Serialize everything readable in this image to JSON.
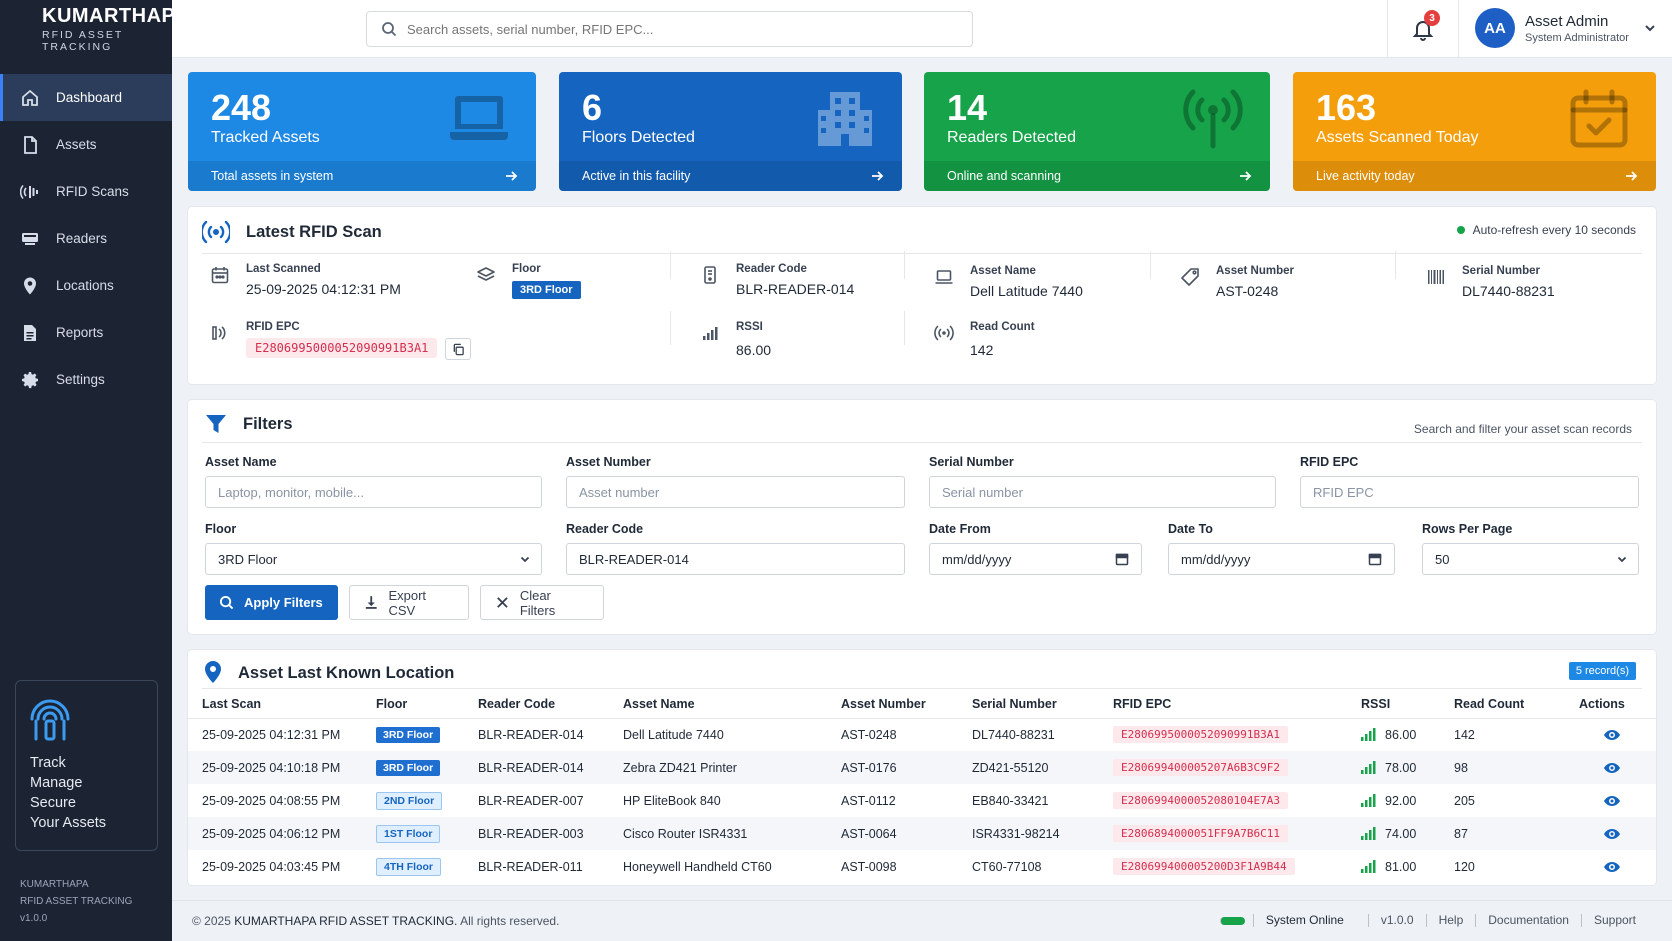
{
  "brand": {
    "name": "KUMARTHAPA",
    "subtitle": "RFID ASSET TRACKING"
  },
  "sidebar": {
    "items": [
      {
        "label": "Dashboard",
        "icon": "home-icon",
        "active": true
      },
      {
        "label": "Assets",
        "icon": "file-icon"
      },
      {
        "label": "RFID Scans",
        "icon": "rfid-scan-icon"
      },
      {
        "label": "Readers",
        "icon": "reader-icon"
      },
      {
        "label": "Locations",
        "icon": "location-pin-icon"
      },
      {
        "label": "Reports",
        "icon": "report-icon"
      },
      {
        "label": "Settings",
        "icon": "gear-icon"
      }
    ],
    "promo": {
      "lines": [
        "Track",
        "Manage",
        "Secure",
        "Your Assets"
      ]
    },
    "footer": {
      "name": "KUMARTHAPA",
      "subtitle": "RFID ASSET TRACKING",
      "version": "v1.0.0"
    }
  },
  "topbar": {
    "search_placeholder": "Search assets, serial number, RFID EPC...",
    "notifications": "3",
    "user": {
      "initials": "AA",
      "name": "Asset Admin",
      "role": "System Administrator"
    }
  },
  "stats": [
    {
      "value": "248",
      "label": "Tracked Assets",
      "footer": "Total assets in system",
      "color": "#1e88e5",
      "icon": "laptop-icon"
    },
    {
      "value": "6",
      "label": "Floors Detected",
      "footer": "Active in this facility",
      "color": "#1565c0",
      "icon": "building-icon"
    },
    {
      "value": "14",
      "label": "Readers Detected",
      "footer": "Online and scanning",
      "color": "#16a34a",
      "icon": "antenna-icon"
    },
    {
      "value": "163",
      "label": "Assets Scanned Today",
      "footer": "Live activity today",
      "color": "#f59e0b",
      "icon": "calendar-check-icon"
    }
  ],
  "latest_scan": {
    "title": "Latest RFID Scan",
    "auto_refresh": "Auto-refresh every 10 seconds",
    "last_scanned": {
      "label": "Last Scanned",
      "value": "25-09-2025 04:12:31 PM"
    },
    "floor": {
      "label": "Floor",
      "value": "3RD Floor"
    },
    "reader_code": {
      "label": "Reader Code",
      "value": "BLR-READER-014"
    },
    "asset_name": {
      "label": "Asset Name",
      "value": "Dell Latitude 7440"
    },
    "asset_number": {
      "label": "Asset Number",
      "value": "AST-0248"
    },
    "serial_number": {
      "label": "Serial Number",
      "value": "DL7440-88231"
    },
    "rfid_epc": {
      "label": "RFID EPC",
      "value": "E2806995000052090991B3A1"
    },
    "rssi": {
      "label": "RSSI",
      "value": "86.00"
    },
    "read_count": {
      "label": "Read Count",
      "value": "142"
    }
  },
  "filters": {
    "title": "Filters",
    "hint": "Search and filter your asset scan records",
    "asset_name": {
      "label": "Asset Name",
      "placeholder": "Laptop, monitor, mobile..."
    },
    "asset_number": {
      "label": "Asset Number",
      "placeholder": "Asset number"
    },
    "serial_number": {
      "label": "Serial Number",
      "placeholder": "Serial number"
    },
    "rfid_epc": {
      "label": "RFID EPC",
      "placeholder": "RFID EPC"
    },
    "floor": {
      "label": "Floor",
      "value": "3RD Floor"
    },
    "reader_code": {
      "label": "Reader Code",
      "value": "BLR-READER-014"
    },
    "date_from": {
      "label": "Date From",
      "placeholder": "mm/dd/yyyy"
    },
    "date_to": {
      "label": "Date To",
      "placeholder": "mm/dd/yyyy"
    },
    "rows_per_page": {
      "label": "Rows Per Page",
      "value": "50"
    },
    "apply_label": "Apply Filters",
    "export_label": "Export CSV",
    "clear_label": "Clear Filters"
  },
  "locations": {
    "title": "Asset Last Known Location",
    "records": "5 record(s)",
    "columns": [
      "Last Scan",
      "Floor",
      "Reader Code",
      "Asset Name",
      "Asset Number",
      "Serial Number",
      "RFID EPC",
      "RSSI",
      "Read Count",
      "Actions"
    ],
    "rows": [
      {
        "last_scan": "25-09-2025 04:12:31 PM",
        "floor": "3RD Floor",
        "reader": "BLR-READER-014",
        "asset": "Dell Latitude 7440",
        "number": "AST-0248",
        "serial": "DL7440-88231",
        "epc": "E2806995000052090991B3A1",
        "rssi": "86.00",
        "count": "142"
      },
      {
        "last_scan": "25-09-2025 04:10:18 PM",
        "floor": "3RD Floor",
        "reader": "BLR-READER-014",
        "asset": "Zebra ZD421 Printer",
        "number": "AST-0176",
        "serial": "ZD421-55120",
        "epc": "E280699400005207A6B3C9F2",
        "rssi": "78.00",
        "count": "98"
      },
      {
        "last_scan": "25-09-2025 04:08:55 PM",
        "floor": "2ND Floor",
        "reader": "BLR-READER-007",
        "asset": "HP EliteBook 840",
        "number": "AST-0112",
        "serial": "EB840-33421",
        "epc": "E2806994000052080104E7A3",
        "rssi": "92.00",
        "count": "205"
      },
      {
        "last_scan": "25-09-2025 04:06:12 PM",
        "floor": "1ST Floor",
        "reader": "BLR-READER-003",
        "asset": "Cisco Router ISR4331",
        "number": "AST-0064",
        "serial": "ISR4331-98214",
        "epc": "E2806894000051FF9A7B6C11",
        "rssi": "74.00",
        "count": "87"
      },
      {
        "last_scan": "25-09-2025 04:03:45 PM",
        "floor": "4TH Floor",
        "reader": "BLR-READER-011",
        "asset": "Honeywell Handheld CT60",
        "number": "AST-0098",
        "serial": "CT60-77108",
        "epc": "E280699400005200D3F1A9B44",
        "rssi": "81.00",
        "count": "120"
      }
    ]
  },
  "footer": {
    "prefix": "© 2025",
    "company": "KUMARTHAPA RFID ASSET TRACKING.",
    "suffix": "All rights reserved.",
    "status": "System Online",
    "version": "v1.0.0",
    "links": [
      "Help",
      "Documentation",
      "Support"
    ]
  },
  "colors": {
    "accent": "#1565c0",
    "sidebar": "#1c2434",
    "epc_text": "#d32f4f",
    "online": "#16a34a"
  }
}
